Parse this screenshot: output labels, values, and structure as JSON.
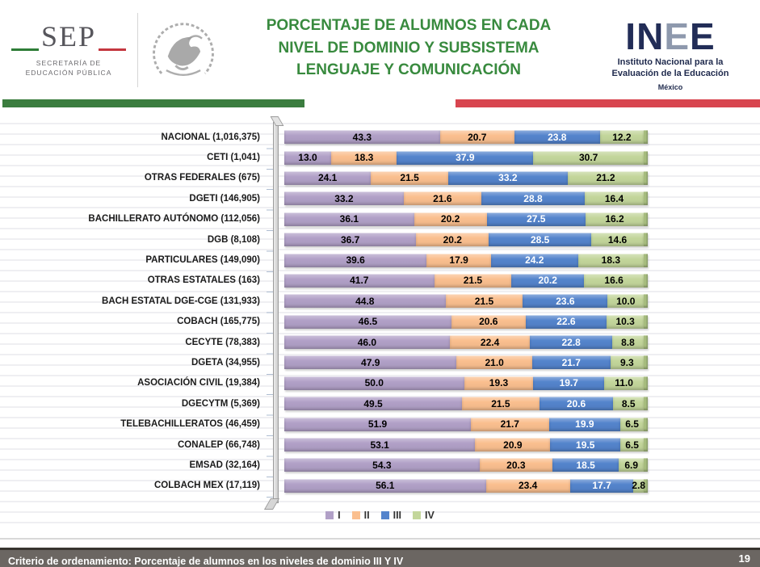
{
  "header": {
    "sep": {
      "acronym": "SEP",
      "subtitle_line1": "SECRETARÍA DE",
      "subtitle_line2": "EDUCACIÓN PÚBLICA"
    },
    "coat_of_arms": "escudo-nacional-de-mexico",
    "title_lines": [
      "PORCENTAJE DE ALUMNOS EN CADA",
      "NIVEL DE DOMINIO Y SUBSISTEMA",
      "LENGUAJE Y COMUNICACIÓN"
    ],
    "inee": {
      "letters": [
        {
          "ch": "I",
          "color": "#222d57"
        },
        {
          "ch": "N",
          "color": "#222d57"
        },
        {
          "ch": "E",
          "color": "#8e99ad"
        },
        {
          "ch": "E",
          "color": "#222d57"
        }
      ],
      "subtitle_line1": "Instituto Nacional para la",
      "subtitle_line2": "Evaluación de la Educación",
      "country": "México"
    }
  },
  "colors": {
    "title_green": "#388a3e",
    "divider_green": "#3b7d3f",
    "divider_red": "#d8454f",
    "footer_bg": "#6b6662"
  },
  "chart_data": {
    "type": "bar",
    "orientation": "horizontal",
    "stacked": true,
    "title": "",
    "xlabel": "",
    "ylabel": "",
    "xlim": [
      0,
      100
    ],
    "grid": "horizontal-lines",
    "legend_position": "bottom",
    "series_names": [
      "I",
      "II",
      "III",
      "IV"
    ],
    "series_colors": [
      "#b1a0c7",
      "#fabf8f",
      "#5484cc",
      "#c3d69b"
    ],
    "value_label_colors": [
      "#000000",
      "#000000",
      "#ffffff",
      "#000000"
    ],
    "end_cap_color": "#a9bf80",
    "categories": [
      "NACIONAL (1,016,375)",
      "CETI (1,041)",
      "OTRAS FEDERALES (675)",
      "DGETI (146,905)",
      "BACHILLERATO AUTÓNOMO (112,056)",
      "DGB (8,108)",
      "PARTICULARES (149,090)",
      "OTRAS ESTATALES (163)",
      "BACH ESTATAL DGE-CGE (131,933)",
      "COBACH (165,775)",
      "CECYTE (78,383)",
      "DGETA (34,955)",
      "ASOCIACIÓN CIVIL (19,384)",
      "DGECYTM (5,369)",
      "TELEBACHILLERATOS (46,459)",
      "CONALEP (66,748)",
      "EMSAD (32,164)",
      "COLBACH MEX (17,119)"
    ],
    "series": [
      {
        "name": "I",
        "values": [
          43.3,
          13.0,
          24.1,
          33.2,
          36.1,
          36.7,
          39.6,
          41.7,
          44.8,
          46.5,
          46.0,
          47.9,
          50.0,
          49.5,
          51.9,
          53.1,
          54.3,
          56.1
        ]
      },
      {
        "name": "II",
        "values": [
          20.7,
          18.3,
          21.5,
          21.6,
          20.2,
          20.2,
          17.9,
          21.5,
          21.5,
          20.6,
          22.4,
          21.0,
          19.3,
          21.5,
          21.7,
          20.9,
          20.3,
          23.4
        ]
      },
      {
        "name": "III",
        "values": [
          23.8,
          37.9,
          33.2,
          28.8,
          27.5,
          28.5,
          24.2,
          20.2,
          23.6,
          22.6,
          22.8,
          21.7,
          19.7,
          20.6,
          19.9,
          19.5,
          18.5,
          17.7
        ]
      },
      {
        "name": "IV",
        "values": [
          12.2,
          30.7,
          21.2,
          16.4,
          16.2,
          14.6,
          18.3,
          16.6,
          10.0,
          10.3,
          8.8,
          9.3,
          11.0,
          8.5,
          6.5,
          6.5,
          6.9,
          2.8
        ]
      }
    ]
  },
  "footer": {
    "note": "Criterio de ordenamiento:  Porcentaje de alumnos en  los niveles  de dominio III Y IV",
    "page_number": "19"
  }
}
